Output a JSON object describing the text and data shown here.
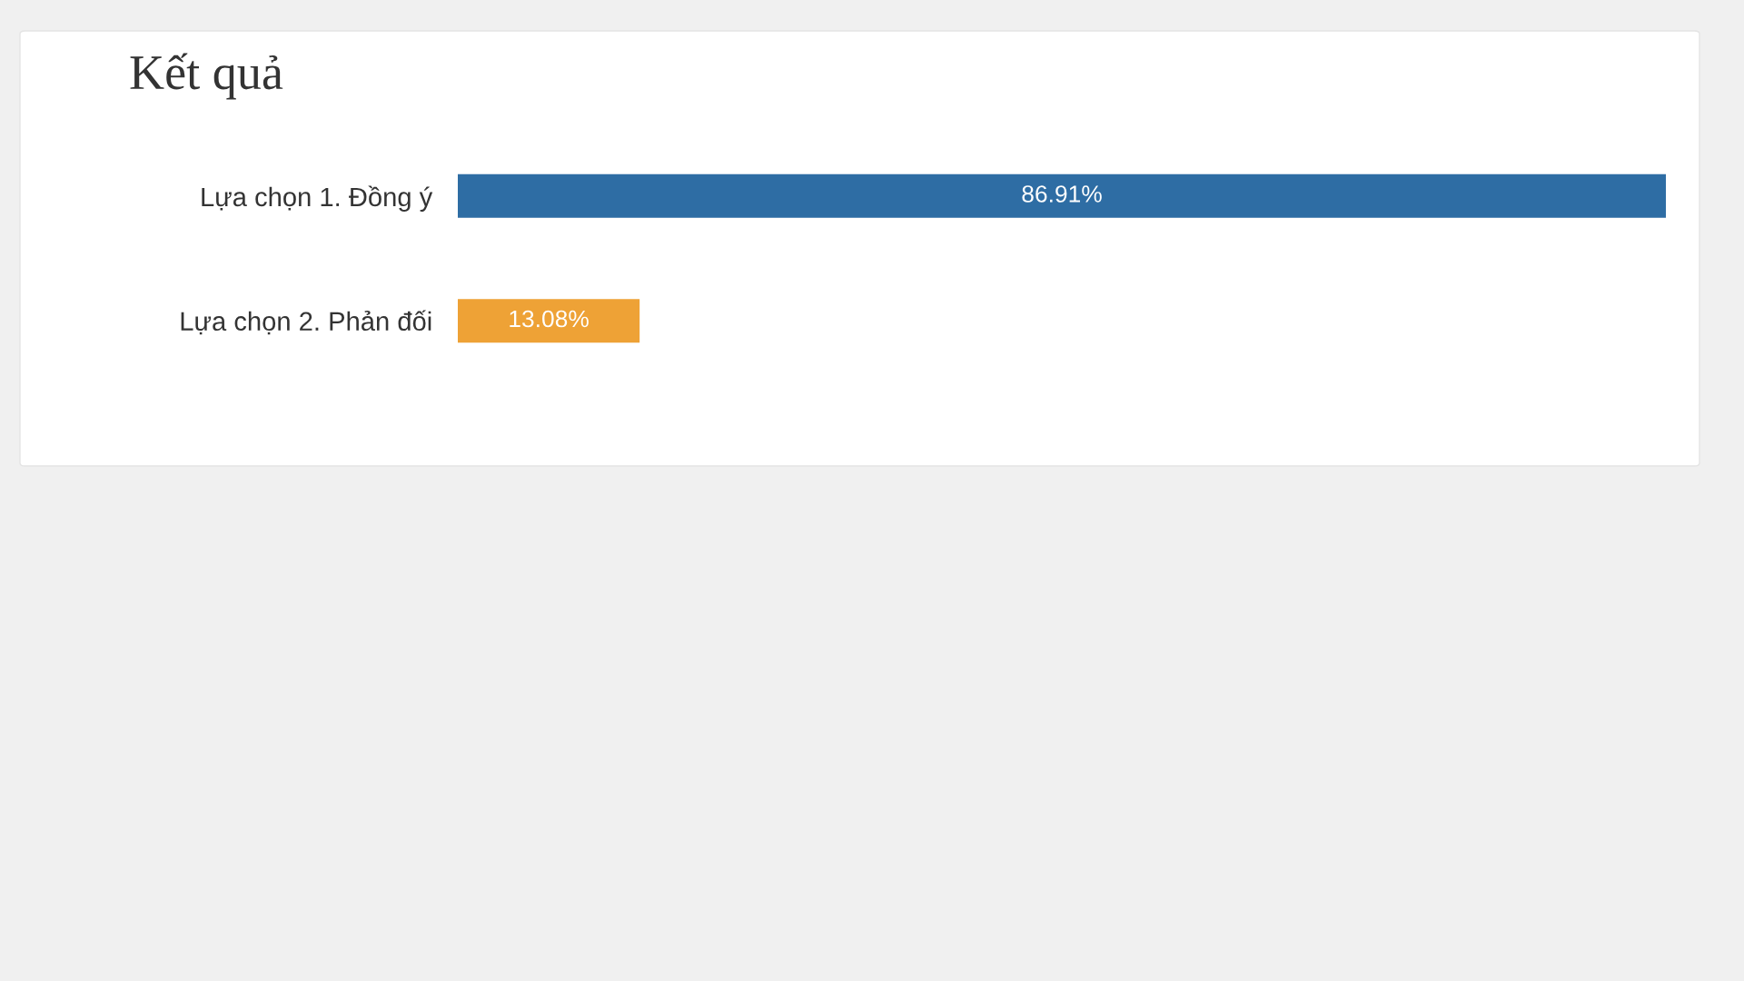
{
  "chart_data": {
    "type": "bar",
    "title": "Kết quả",
    "orientation": "horizontal",
    "categories": [
      "Lựa chọn 1. Đồng ý",
      "Lựa chọn 2. Phản đối"
    ],
    "values": [
      86.91,
      13.08
    ],
    "colors": [
      "#2e6da4",
      "#eea236"
    ],
    "value_labels": [
      "86.91%",
      "13.08%"
    ],
    "xlim": [
      0,
      86.91
    ],
    "tick_labels": "y"
  }
}
